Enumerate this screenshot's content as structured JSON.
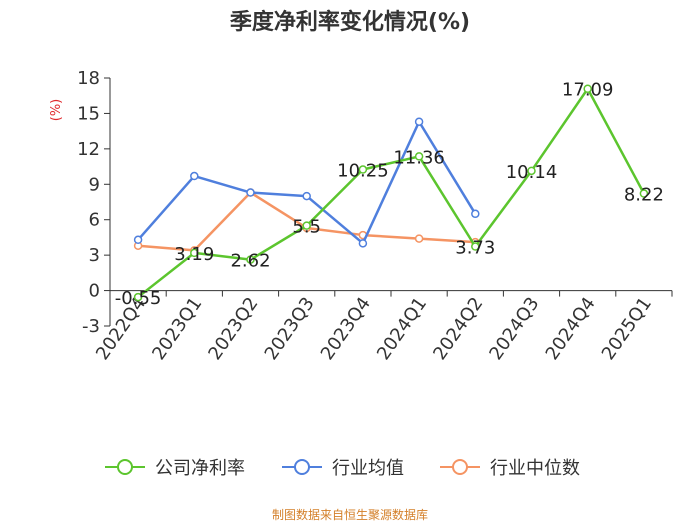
{
  "chart_data": {
    "type": "line",
    "title": "季度净利率变化情况(%)",
    "ylabel": "(%)",
    "xlabel": "",
    "ylim": [
      -3,
      18
    ],
    "yticks": [
      -3,
      0,
      3,
      6,
      9,
      12,
      15,
      18
    ],
    "categories": [
      "2022Q4",
      "2023Q1",
      "2023Q2",
      "2023Q3",
      "2023Q4",
      "2024Q1",
      "2024Q2",
      "2024Q3",
      "2024Q4",
      "2025Q1"
    ],
    "legend_position": "bottom",
    "grid": false,
    "series": [
      {
        "name": "公司净利率",
        "color": "#5cc52e",
        "values": [
          -0.55,
          3.19,
          2.62,
          5.5,
          10.25,
          11.36,
          3.73,
          10.14,
          17.09,
          8.22
        ],
        "labels": [
          "-0.55",
          "3.19",
          "2.62",
          "5.5",
          "10.25",
          "11.36",
          "3.73",
          "10.14",
          "17.09",
          "8.22"
        ]
      },
      {
        "name": "行业均值",
        "color": "#4f7fdd",
        "values": [
          4.3,
          9.7,
          8.3,
          8.0,
          4.0,
          14.3,
          6.5,
          null,
          null,
          null
        ]
      },
      {
        "name": "行业中位数",
        "color": "#f59463",
        "values": [
          3.8,
          3.4,
          8.3,
          5.3,
          4.7,
          4.4,
          4.1,
          null,
          null,
          null
        ]
      }
    ]
  },
  "source_text": "制图数据来自恒生聚源数据库"
}
